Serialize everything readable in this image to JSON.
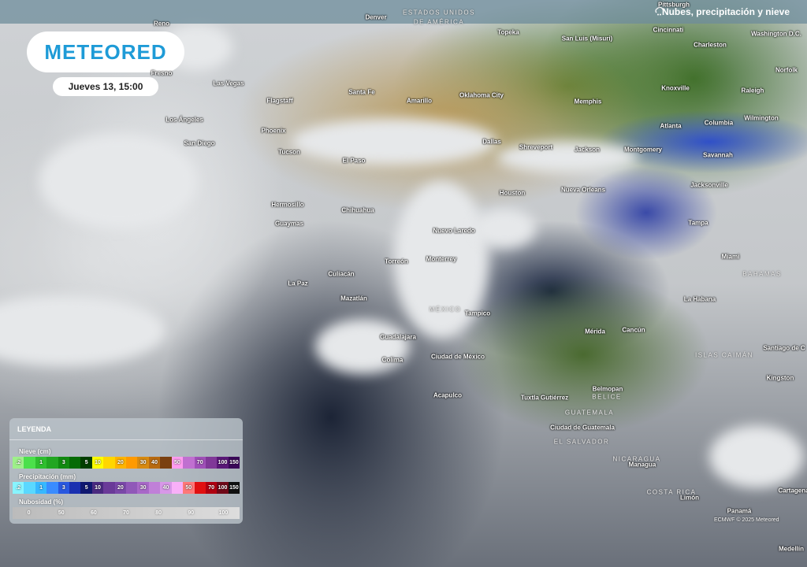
{
  "header": {
    "title": "Nubes, precipitación y nieve",
    "icon": "cloud-precipitation-icon"
  },
  "logo": "METEORED",
  "date": "Jueves 13, 15:00",
  "cities": [
    "Pittsburgh",
    "Denver",
    "Reno",
    "Fresno",
    "Las Vegas",
    "Los Ángeles",
    "San Diego",
    "Flagstaff",
    "Phoenix",
    "Tucson",
    "Santa Fe",
    "Amarillo",
    "El Paso",
    "Oklahoma City",
    "Topeka",
    "San Luis (Misuri)",
    "Cincinnati",
    "Washington D.C.",
    "Charleston",
    "Norfolk",
    "Knoxville",
    "Raleigh",
    "Memphis",
    "Atlanta",
    "Columbia",
    "Wilmington",
    "Dallas",
    "Shreveport",
    "Jackson",
    "Montgomery",
    "Savannah",
    "Houston",
    "Nueva Orleans",
    "Jacksonville",
    "Hermosillo",
    "Chihuahua",
    "Guaymas",
    "Nuevo Laredo",
    "Tampa",
    "Torreón",
    "Monterrey",
    "Miami",
    "La Paz",
    "Culiacán",
    "Mazatlán",
    "Tampico",
    "La Habana",
    "Mérida",
    "Cancún",
    "Guadalajara",
    "Ciudad de México",
    "Santiago de C",
    "Colima",
    "Kingston",
    "Acapulco",
    "Belmopan",
    "Tuxtla Gutiérrez",
    "Ciudad de Guatemala",
    "Managua",
    "Limón",
    "Panamá",
    "Cartagena",
    "Medellín"
  ],
  "countries": [
    "ESTADOS UNIDOS",
    "DE AMÉRICA",
    "MÉXICO",
    "BAHAMAS",
    "ISLAS CAIMÁN",
    "BELICE",
    "GUATEMALA",
    "EL SALVADOR",
    "NICARAGUA",
    "COSTA RICA"
  ],
  "legend": {
    "title": "LEYENDA",
    "snow": {
      "label": "Nieve (cm)",
      "cells": [
        ".2",
        "",
        "1",
        "",
        "3",
        "",
        "5",
        "10",
        "",
        "20",
        "",
        "30",
        "40",
        "",
        "50",
        "",
        "70",
        "",
        "100",
        "150"
      ],
      "colors": [
        "#9ef08a",
        "#4be04b",
        "#2fbf2f",
        "#22a622",
        "#118a11",
        "#056b05",
        "#003f00",
        "#ffff00",
        "#ffd600",
        "#ffb400",
        "#ff9a00",
        "#d88a10",
        "#b86a10",
        "#7a4010",
        "#ff9cf0",
        "#c070d0",
        "#a050b8",
        "#803898",
        "#5a1878",
        "#3a0858"
      ]
    },
    "precip": {
      "label": "Precipitación (mm)",
      "cells": [
        ".2",
        "",
        "1",
        "",
        "3",
        "",
        "5",
        "10",
        "",
        "20",
        "",
        "30",
        "",
        "40",
        "",
        "50",
        "",
        "70",
        "100",
        "150"
      ],
      "colors": [
        "#88f4ff",
        "#5ad8ff",
        "#38b8ff",
        "#3a8cff",
        "#2858e0",
        "#1a30b0",
        "#101870",
        "#4a2a80",
        "#6a3a98",
        "#7a48a8",
        "#9058b8",
        "#a868c8",
        "#c080d8",
        "#d898e8",
        "#f8b0f8",
        "#ff7878",
        "#e01010",
        "#b00010",
        "#700818",
        "#101010"
      ]
    },
    "clouds": {
      "label": "Nubosidad (%)",
      "ticks": [
        "0",
        "50",
        "60",
        "70",
        "80",
        "90",
        "100"
      ]
    }
  },
  "copyright": "ECMWF © 2025 Meteored"
}
